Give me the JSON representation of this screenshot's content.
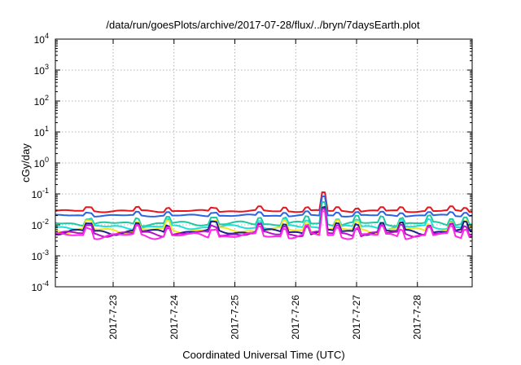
{
  "chart_data": {
    "type": "line",
    "title": "/data/run/goesPlots/archive/2017-07-28/flux/../bryn/7daysEarth.plot",
    "xlabel": "Coordinated Universal Time (UTC)",
    "ylabel": "cGy/day",
    "yscale": "log",
    "ylim": [
      0.0001,
      10000
    ],
    "y_ticks": [
      {
        "value": 0.0001,
        "mant": "10",
        "exp": "-4"
      },
      {
        "value": 0.001,
        "mant": "10",
        "exp": "-3"
      },
      {
        "value": 0.01,
        "mant": "10",
        "exp": "-2"
      },
      {
        "value": 0.1,
        "mant": "10",
        "exp": "-1"
      },
      {
        "value": 1,
        "mant": "10",
        "exp": "0"
      },
      {
        "value": 10,
        "mant": "10",
        "exp": "1"
      },
      {
        "value": 100,
        "mant": "10",
        "exp": "2"
      },
      {
        "value": 1000,
        "mant": "10",
        "exp": "3"
      },
      {
        "value": 10000,
        "mant": "10",
        "exp": "4"
      }
    ],
    "xlim": [
      0,
      6.85
    ],
    "x_ticks": [
      {
        "value": 0.95,
        "label": "2017-7-23"
      },
      {
        "value": 1.95,
        "label": "2017-7-24"
      },
      {
        "value": 2.95,
        "label": "2017-7-25"
      },
      {
        "value": 3.95,
        "label": "2017-7-26"
      },
      {
        "value": 4.95,
        "label": "2017-7-27"
      },
      {
        "value": 5.95,
        "label": "2017-7-28"
      }
    ],
    "grid": true,
    "series": [
      {
        "color": "#e8141e",
        "base": 0.028,
        "amp": 0.22,
        "spike": 3.0
      },
      {
        "color": "#2a63e6",
        "base": 0.02,
        "amp": 0.2,
        "spike": 3.2
      },
      {
        "color": "#1ec8a0",
        "base": 0.011,
        "amp": 0.45,
        "spike": 3.8
      },
      {
        "color": "#1ee0d8",
        "base": 0.0085,
        "amp": 0.45,
        "spike": 3.8
      },
      {
        "color": "#f0e81e",
        "base": 0.0068,
        "amp": 0.55,
        "spike": 4.2
      },
      {
        "color": "#1e1e8c",
        "base": 0.006,
        "amp": 0.55,
        "spike": 4.2
      },
      {
        "color": "#b414c8",
        "base": 0.0052,
        "amp": 0.55,
        "spike": 4.4
      },
      {
        "color": "#ff28e6",
        "base": 0.0045,
        "amp": 0.6,
        "spike": 4.6
      }
    ]
  }
}
